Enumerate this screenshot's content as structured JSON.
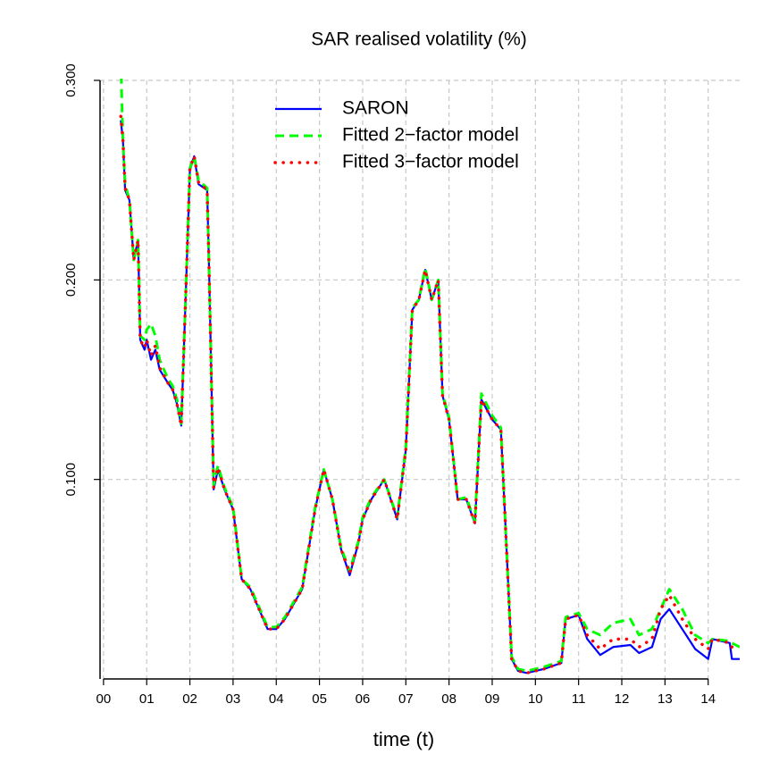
{
  "chart_data": {
    "type": "line",
    "title": "SAR realised volatility (%)",
    "x_label": "time (t)",
    "x": [
      0.4,
      0.45,
      0.5,
      0.6,
      0.7,
      0.8,
      0.85,
      0.95,
      1.0,
      1.1,
      1.2,
      1.3,
      1.5,
      1.6,
      1.7,
      1.8,
      1.9,
      2.0,
      2.1,
      2.2,
      2.4,
      2.45,
      2.55,
      2.65,
      2.8,
      3.0,
      3.2,
      3.4,
      3.6,
      3.8,
      4.0,
      4.2,
      4.6,
      4.9,
      5.1,
      5.3,
      5.5,
      5.7,
      5.9,
      6.0,
      6.2,
      6.5,
      6.8,
      7.0,
      7.15,
      7.3,
      7.45,
      7.6,
      7.75,
      7.85,
      8.0,
      8.2,
      8.4,
      8.6,
      8.75,
      9.0,
      9.2,
      9.3,
      9.45,
      9.6,
      9.8,
      10.2,
      10.6,
      10.7,
      11.0,
      11.2,
      11.5,
      11.8,
      12.2,
      12.4,
      12.7,
      12.9,
      13.1,
      13.4,
      13.7,
      14.0,
      14.1,
      14.5,
      14.55,
      14.73
    ],
    "series": [
      {
        "name": "SARON",
        "color": "#0000ff",
        "style": "solid",
        "values": [
          0.28,
          0.27,
          0.245,
          0.24,
          0.21,
          0.22,
          0.17,
          0.165,
          0.17,
          0.16,
          0.165,
          0.155,
          0.148,
          0.145,
          0.138,
          0.127,
          0.19,
          0.255,
          0.262,
          0.248,
          0.245,
          0.2,
          0.095,
          0.105,
          0.095,
          0.085,
          0.05,
          0.045,
          0.035,
          0.025,
          0.025,
          0.03,
          0.045,
          0.085,
          0.105,
          0.09,
          0.065,
          0.052,
          0.068,
          0.08,
          0.09,
          0.1,
          0.08,
          0.115,
          0.185,
          0.19,
          0.205,
          0.19,
          0.2,
          0.142,
          0.13,
          0.09,
          0.09,
          0.078,
          0.14,
          0.13,
          0.125,
          0.08,
          0.01,
          0.004,
          0.003,
          0.005,
          0.008,
          0.03,
          0.032,
          0.02,
          0.012,
          0.016,
          0.017,
          0.013,
          0.016,
          0.03,
          0.035,
          0.025,
          0.015,
          0.01,
          0.02,
          0.018,
          0.01,
          0.01
        ]
      },
      {
        "name": "Fitted 2−factor model",
        "color": "#00ff00",
        "style": "dashed",
        "values": [
          0.31,
          0.27,
          0.248,
          0.24,
          0.21,
          0.22,
          0.172,
          0.17,
          0.175,
          0.178,
          0.172,
          0.16,
          0.15,
          0.147,
          0.14,
          0.128,
          0.19,
          0.256,
          0.262,
          0.25,
          0.246,
          0.2,
          0.097,
          0.107,
          0.096,
          0.086,
          0.05,
          0.046,
          0.036,
          0.026,
          0.026,
          0.031,
          0.046,
          0.086,
          0.105,
          0.09,
          0.066,
          0.054,
          0.069,
          0.081,
          0.091,
          0.1,
          0.081,
          0.116,
          0.186,
          0.19,
          0.206,
          0.19,
          0.2,
          0.143,
          0.131,
          0.09,
          0.091,
          0.079,
          0.143,
          0.132,
          0.126,
          0.08,
          0.011,
          0.005,
          0.004,
          0.006,
          0.009,
          0.031,
          0.033,
          0.025,
          0.022,
          0.028,
          0.03,
          0.022,
          0.025,
          0.035,
          0.045,
          0.035,
          0.022,
          0.018,
          0.02,
          0.019,
          0.018,
          0.016
        ]
      },
      {
        "name": "Fitted 3−factor model",
        "color": "#ff0000",
        "style": "dotted",
        "values": [
          0.282,
          0.27,
          0.246,
          0.24,
          0.21,
          0.22,
          0.17,
          0.166,
          0.17,
          0.162,
          0.167,
          0.156,
          0.148,
          0.145,
          0.138,
          0.127,
          0.19,
          0.256,
          0.262,
          0.249,
          0.245,
          0.2,
          0.096,
          0.106,
          0.095,
          0.085,
          0.05,
          0.045,
          0.035,
          0.025,
          0.025,
          0.03,
          0.045,
          0.085,
          0.105,
          0.09,
          0.065,
          0.053,
          0.068,
          0.08,
          0.09,
          0.1,
          0.08,
          0.115,
          0.185,
          0.19,
          0.205,
          0.19,
          0.2,
          0.142,
          0.13,
          0.09,
          0.09,
          0.078,
          0.14,
          0.13,
          0.125,
          0.08,
          0.01,
          0.004,
          0.003,
          0.005,
          0.008,
          0.03,
          0.032,
          0.022,
          0.015,
          0.02,
          0.02,
          0.016,
          0.02,
          0.035,
          0.042,
          0.03,
          0.02,
          0.015,
          0.02,
          0.018,
          0.016,
          0.016
        ]
      }
    ],
    "xlim": [
      -0.08,
      14.73
    ],
    "ylim": [
      0,
      0.3
    ],
    "xticks": [
      {
        "value": 0,
        "label": "00"
      },
      {
        "value": 1,
        "label": "01"
      },
      {
        "value": 2,
        "label": "02"
      },
      {
        "value": 3,
        "label": "03"
      },
      {
        "value": 4,
        "label": "04"
      },
      {
        "value": 5,
        "label": "05"
      },
      {
        "value": 6,
        "label": "06"
      },
      {
        "value": 7,
        "label": "07"
      },
      {
        "value": 8,
        "label": "08"
      },
      {
        "value": 9,
        "label": "09"
      },
      10,
      11,
      12,
      13,
      14
    ],
    "yticks": [
      {
        "value": 0.1,
        "label": "0.100"
      },
      {
        "value": 0.2,
        "label": "0.200"
      },
      {
        "value": 0.3,
        "label": "0.300"
      }
    ],
    "grid": true,
    "legend": "top"
  }
}
